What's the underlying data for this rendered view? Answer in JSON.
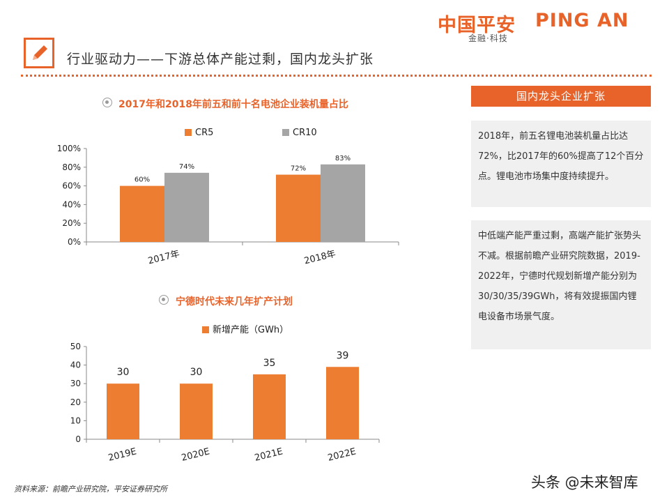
{
  "header": {
    "logo_cn": "中国平安",
    "logo_en": "PING AN",
    "logo_sub": "金融·科技",
    "title": "行业驱动力——下游总体产能过剩，国内龙头扩张"
  },
  "panel": {
    "heading": "国内龙头企业扩张",
    "card1": "2018年，前五名锂电池装机量占比达72%，比2017年的60%提高了12个百分点。锂电池市场集中度持续提升。",
    "card2": "中低端产能严重过剩，高端产能扩张势头不减。根据前瞻产业研究院数据，2019-2022年，宁德时代规划新增产能分别为30/30/35/39GWh，将有效提振国内锂电设备市场景气度。"
  },
  "footer": {
    "source": "资料来源：前瞻产业研究院，平安证券研究所",
    "watermark": "头条 @未来智库"
  },
  "colors": {
    "accent": "#e8632a",
    "orange_bar": "#ed7d31",
    "gray_bar": "#a5a5a5",
    "card_bg": "#f0f0f0"
  },
  "chart_data": [
    {
      "type": "bar",
      "title": "2017年和2018年前五和前十名电池企业装机量占比",
      "categories": [
        "2017年",
        "2018年"
      ],
      "series": [
        {
          "name": "CR5",
          "values": [
            60,
            72
          ],
          "labels": [
            "60%",
            "72%"
          ]
        },
        {
          "name": "CR10",
          "values": [
            74,
            83
          ],
          "labels": [
            "74%",
            "83%"
          ]
        }
      ],
      "ylim": [
        0,
        100
      ],
      "yticks": [
        "0%",
        "20%",
        "40%",
        "60%",
        "80%",
        "100%"
      ],
      "legend": "top",
      "grid": false
    },
    {
      "type": "bar",
      "title": "宁德时代未来几年扩产计划",
      "categories": [
        "2019E",
        "2020E",
        "2021E",
        "2022E"
      ],
      "series": [
        {
          "name": "新增产能（GWh）",
          "values": [
            30,
            30,
            35,
            39
          ],
          "labels": [
            "30",
            "30",
            "35",
            "39"
          ]
        }
      ],
      "ylim": [
        0,
        50
      ],
      "yticks": [
        "0",
        "10",
        "20",
        "30",
        "40",
        "50"
      ],
      "legend": "top",
      "grid": false
    }
  ]
}
